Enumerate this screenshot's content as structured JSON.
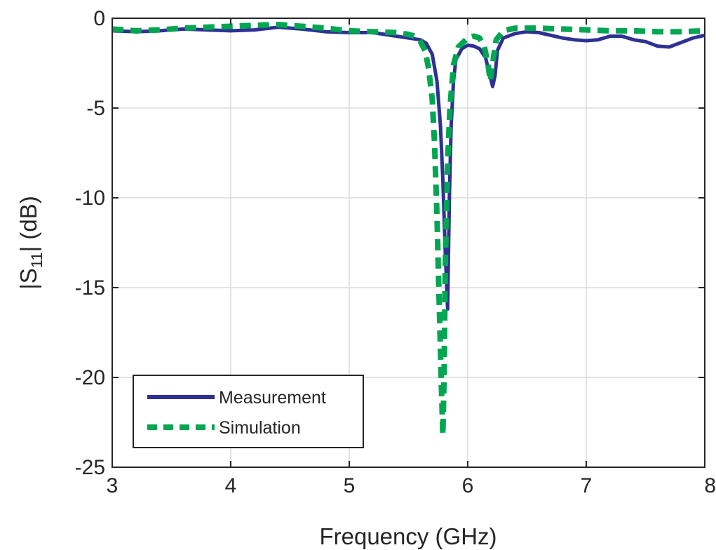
{
  "chart_data": {
    "type": "line",
    "title": "",
    "xlabel": "Frequency (GHz)",
    "ylabel": {
      "prefix": "|S",
      "subscript": "11",
      "suffix": "| (dB)"
    },
    "xlim": [
      3,
      8
    ],
    "ylim": [
      -25,
      0
    ],
    "xticks": [
      "3",
      "4",
      "5",
      "6",
      "7",
      "8"
    ],
    "yticks": [
      "0",
      "-5",
      "-10",
      "-15",
      "-20",
      "-25"
    ],
    "grid": true,
    "legend": {
      "placement": "bottom-left"
    },
    "series": [
      {
        "name": "Measurement",
        "color": "#2e3192",
        "style": "solid",
        "points": [
          [
            3.0,
            -0.7
          ],
          [
            3.2,
            -0.75
          ],
          [
            3.4,
            -0.7
          ],
          [
            3.6,
            -0.6
          ],
          [
            3.8,
            -0.65
          ],
          [
            4.0,
            -0.7
          ],
          [
            4.2,
            -0.65
          ],
          [
            4.4,
            -0.5
          ],
          [
            4.6,
            -0.6
          ],
          [
            4.8,
            -0.75
          ],
          [
            5.0,
            -0.8
          ],
          [
            5.2,
            -0.8
          ],
          [
            5.4,
            -1.0
          ],
          [
            5.5,
            -1.1
          ],
          [
            5.6,
            -1.2
          ],
          [
            5.65,
            -1.4
          ],
          [
            5.7,
            -2.0
          ],
          [
            5.74,
            -3.5
          ],
          [
            5.77,
            -6.0
          ],
          [
            5.79,
            -9.0
          ],
          [
            5.81,
            -13.0
          ],
          [
            5.83,
            -16.2
          ],
          [
            5.845,
            -10.0
          ],
          [
            5.86,
            -6.0
          ],
          [
            5.88,
            -3.5
          ],
          [
            5.9,
            -2.3
          ],
          [
            5.95,
            -1.7
          ],
          [
            6.0,
            -1.5
          ],
          [
            6.05,
            -1.55
          ],
          [
            6.1,
            -1.7
          ],
          [
            6.15,
            -2.2
          ],
          [
            6.18,
            -3.0
          ],
          [
            6.21,
            -3.8
          ],
          [
            6.23,
            -3.2
          ],
          [
            6.25,
            -1.8
          ],
          [
            6.3,
            -1.1
          ],
          [
            6.4,
            -0.85
          ],
          [
            6.5,
            -0.75
          ],
          [
            6.6,
            -0.8
          ],
          [
            6.7,
            -0.95
          ],
          [
            6.8,
            -1.1
          ],
          [
            6.9,
            -1.2
          ],
          [
            7.0,
            -1.25
          ],
          [
            7.1,
            -1.2
          ],
          [
            7.2,
            -1.0
          ],
          [
            7.3,
            -1.0
          ],
          [
            7.4,
            -1.2
          ],
          [
            7.5,
            -1.3
          ],
          [
            7.6,
            -1.55
          ],
          [
            7.7,
            -1.6
          ],
          [
            7.8,
            -1.35
          ],
          [
            7.9,
            -1.1
          ],
          [
            8.0,
            -0.95
          ]
        ]
      },
      {
        "name": "Simulation",
        "color": "#00a651",
        "style": "dashed",
        "points": [
          [
            3.0,
            -0.6
          ],
          [
            3.2,
            -0.7
          ],
          [
            3.4,
            -0.65
          ],
          [
            3.6,
            -0.55
          ],
          [
            3.8,
            -0.5
          ],
          [
            4.0,
            -0.45
          ],
          [
            4.2,
            -0.4
          ],
          [
            4.4,
            -0.35
          ],
          [
            4.6,
            -0.45
          ],
          [
            4.8,
            -0.55
          ],
          [
            5.0,
            -0.7
          ],
          [
            5.2,
            -0.75
          ],
          [
            5.4,
            -0.8
          ],
          [
            5.5,
            -0.9
          ],
          [
            5.55,
            -1.0
          ],
          [
            5.6,
            -1.3
          ],
          [
            5.64,
            -1.8
          ],
          [
            5.67,
            -2.8
          ],
          [
            5.7,
            -4.5
          ],
          [
            5.72,
            -7.0
          ],
          [
            5.74,
            -11.0
          ],
          [
            5.76,
            -16.0
          ],
          [
            5.78,
            -21.0
          ],
          [
            5.79,
            -23.2
          ],
          [
            5.8,
            -20.0
          ],
          [
            5.81,
            -14.0
          ],
          [
            5.83,
            -8.0
          ],
          [
            5.85,
            -5.0
          ],
          [
            5.88,
            -2.6
          ],
          [
            5.92,
            -1.6
          ],
          [
            6.0,
            -1.1
          ],
          [
            6.05,
            -1.0
          ],
          [
            6.1,
            -1.1
          ],
          [
            6.14,
            -1.6
          ],
          [
            6.17,
            -2.5
          ],
          [
            6.19,
            -3.5
          ],
          [
            6.21,
            -2.5
          ],
          [
            6.24,
            -1.2
          ],
          [
            6.3,
            -0.7
          ],
          [
            6.4,
            -0.55
          ],
          [
            6.6,
            -0.55
          ],
          [
            6.8,
            -0.6
          ],
          [
            7.0,
            -0.65
          ],
          [
            7.2,
            -0.7
          ],
          [
            7.4,
            -0.7
          ],
          [
            7.6,
            -0.75
          ],
          [
            7.8,
            -0.75
          ],
          [
            8.0,
            -0.7
          ]
        ]
      }
    ]
  }
}
